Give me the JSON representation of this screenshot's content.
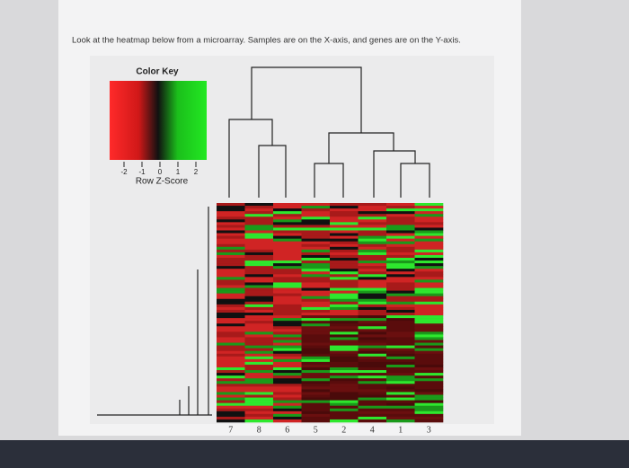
{
  "question": "Look at the heatmap below from a microarray. Samples are on the X-axis, and genes are on the Y-axis.",
  "color_key": {
    "title": "Color Key",
    "ticks": [
      "-2",
      "-1",
      "0",
      "1",
      "2"
    ],
    "label": "Row Z-Score"
  },
  "heatmap": {
    "columns": [
      "7",
      "8",
      "6",
      "5",
      "2",
      "4",
      "1",
      "3"
    ]
  }
}
